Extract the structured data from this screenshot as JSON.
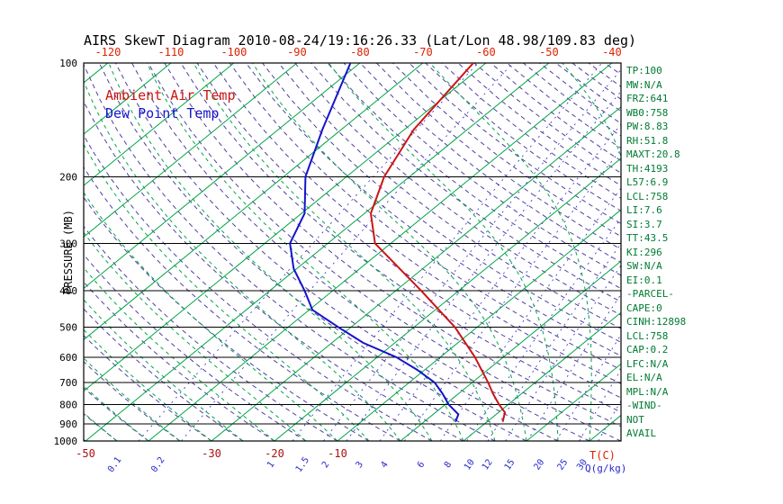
{
  "title": "AIRS SkewT Diagram 2010-08-24/19:16:26.33 (Lat/Lon 48.98/109.83 deg)",
  "legend": {
    "ambient": "Ambient Air Temp",
    "dew": "Dew Point Temp"
  },
  "indices": [
    "TP:100",
    "MW:N/A",
    "FRZ:641",
    "WB0:758",
    "PW:8.83",
    "RH:51.8",
    "MAXT:20.8",
    "TH:4193",
    "L57:6.9",
    "LCL:758",
    "LI:7.6",
    "SI:3.7",
    "TT:43.5",
    "KI:296",
    "SW:N/A",
    "EI:0.1",
    "-PARCEL-",
    "CAPE:0",
    "CINH:12898",
    "LCL:758",
    "CAP:0.2",
    "LFC:N/A",
    "EL:N/A",
    "MPL:N/A",
    "-WIND-",
    "NOT",
    "AVAIL"
  ],
  "colors": {
    "grid": "#000000",
    "isotherm": "#00a546",
    "moist_adiabat": "#00a546",
    "dry_adiabat": "#4f3f9f",
    "mixing_ratio": "#2828cc",
    "top_axis_text": "#dd2200",
    "bottom_axis_text": "#aa1111",
    "q_axis_text": "#2828cc",
    "indices_text": "#007a33",
    "title_text": "#000000"
  },
  "chart_data": {
    "type": "line",
    "title": "AIRS SkewT Diagram 2010-08-24/19:16:26.33 (Lat/Lon 48.98/109.83 deg)",
    "projection": "skew-t log-p",
    "y_axis": {
      "label": "PRESSURE (MB)",
      "scale": "log",
      "range": [
        100,
        1000
      ],
      "ticks": [
        100,
        200,
        300,
        400,
        500,
        600,
        700,
        800,
        900,
        1000
      ]
    },
    "x_axis": {
      "label": "T(C)",
      "top_ticks": [
        -120,
        -110,
        -100,
        -90,
        -80,
        -70,
        -60,
        -50,
        -40
      ],
      "bottom_ticks": [
        -50,
        -30,
        -20,
        -10
      ]
    },
    "q_axis": {
      "label": "Q(g/kg)",
      "ticks": [
        0.1,
        0.2,
        1,
        1.5,
        2,
        3,
        4,
        6,
        8,
        10,
        12,
        15,
        20,
        25,
        30
      ]
    },
    "background_lines": {
      "isotherm_range_c": [
        -130,
        45
      ],
      "isotherm_step_c": 10,
      "dry_adiabat_range_c": [
        -50,
        200
      ],
      "dry_adiabat_step_c": 5,
      "moist_adiabat_range_c": [
        -60,
        35
      ],
      "moist_adiabat_step_c": 5
    },
    "series": [
      {
        "name": "Ambient Air Temp",
        "color": "#cc1414",
        "units": {
          "pressure": "mb",
          "value": "C"
        },
        "points": [
          [
            890,
            12.5
          ],
          [
            840,
            11
          ],
          [
            800,
            8.5
          ],
          [
            750,
            5.5
          ],
          [
            700,
            2.5
          ],
          [
            600,
            -4.5
          ],
          [
            500,
            -13.5
          ],
          [
            400,
            -26
          ],
          [
            300,
            -42.5
          ],
          [
            250,
            -49
          ],
          [
            200,
            -54
          ],
          [
            150,
            -58.5
          ],
          [
            100,
            -62
          ]
        ]
      },
      {
        "name": "Dew Point Temp",
        "color": "#1414cc",
        "units": {
          "pressure": "mb",
          "value": "C"
        },
        "points": [
          [
            890,
            5
          ],
          [
            850,
            4
          ],
          [
            800,
            0.5
          ],
          [
            750,
            -2.5
          ],
          [
            700,
            -6
          ],
          [
            650,
            -11
          ],
          [
            600,
            -17
          ],
          [
            550,
            -25
          ],
          [
            500,
            -32
          ],
          [
            450,
            -39.5
          ],
          [
            400,
            -44.5
          ],
          [
            350,
            -50.5
          ],
          [
            300,
            -56
          ],
          [
            250,
            -59.5
          ],
          [
            200,
            -66.5
          ],
          [
            150,
            -73
          ],
          [
            100,
            -81.5
          ]
        ]
      }
    ]
  }
}
